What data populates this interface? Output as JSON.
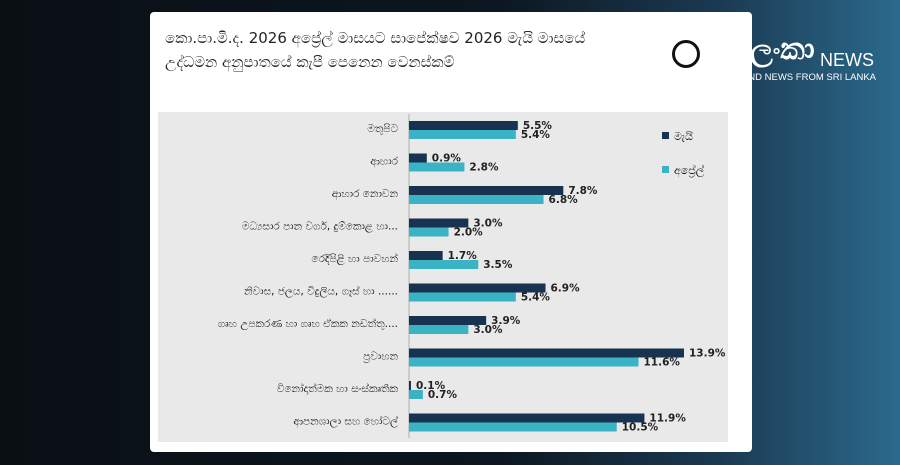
{
  "page": {
    "title_line1": "කො.පා.මි.ද. 2026 අප්‍රේල් මාසයට සාපේක්ෂව 2026 මැයි මාසයේ",
    "title_line2": "උද්ධමන අනුපාතයේ කැපී පෙනෙන වෙනස්කම්"
  },
  "logo": {
    "brand": "සිප්ලංකා",
    "news": "NEWS",
    "tagline": "UNDERGROUND NEWS FROM SRI LANKA"
  },
  "colors": {
    "may": "#17334f",
    "april": "#3ab4c4"
  },
  "chart_data": {
    "type": "bar",
    "orientation": "horizontal",
    "title": "කො.පා.මි.ද. 2026 අප්‍රේල් මාසයට සාපේක්ෂව 2026 මැයි මාසයේ උද්ධමන අනුපාතයේ කැපී පෙනෙන වෙනස්කම්",
    "categories": [
      "මතුපිට",
      "ආහාර",
      "ආහාර නොවන",
      "මධ්‍යසාර පාන වර්ග, දුම්කොළ හා...",
      "රෙදිපිළි හා පාවහන්",
      "නිවාස, ජලය, විදුලිය, ගෑස් හා ......",
      "ගෘහ උපකරණ හා ගෘහ ඒකක නඩත්තු....",
      "ප්‍රවාහන",
      "විනෝදාත්මක හා සංස්කෘතික",
      "ආපනශාලා සහ හෝටල්"
    ],
    "series": [
      {
        "name": "මැයි",
        "color": "#17334f",
        "values": [
          5.5,
          0.9,
          7.8,
          3.0,
          1.7,
          6.9,
          3.9,
          13.9,
          0.1,
          11.9
        ],
        "labels": [
          "5.5%",
          "0.9%",
          "7.8%",
          "3.0%",
          "1.7%",
          "6.9%",
          "3.9%",
          "13.9%",
          "0.1%",
          "11.9%"
        ]
      },
      {
        "name": "අප්‍රේල්",
        "color": "#3ab4c4",
        "values": [
          5.4,
          2.8,
          6.8,
          2.0,
          3.5,
          5.4,
          3.0,
          11.6,
          0.7,
          10.5
        ],
        "labels": [
          "5.4%",
          "2.8%",
          "6.8%",
          "2.0%",
          "3.5%",
          "5.4%",
          "3.0%",
          "11.6%",
          "0.7%",
          "10.5%"
        ]
      }
    ],
    "xlim": [
      0,
      14
    ],
    "legend": "right",
    "grid": false
  }
}
